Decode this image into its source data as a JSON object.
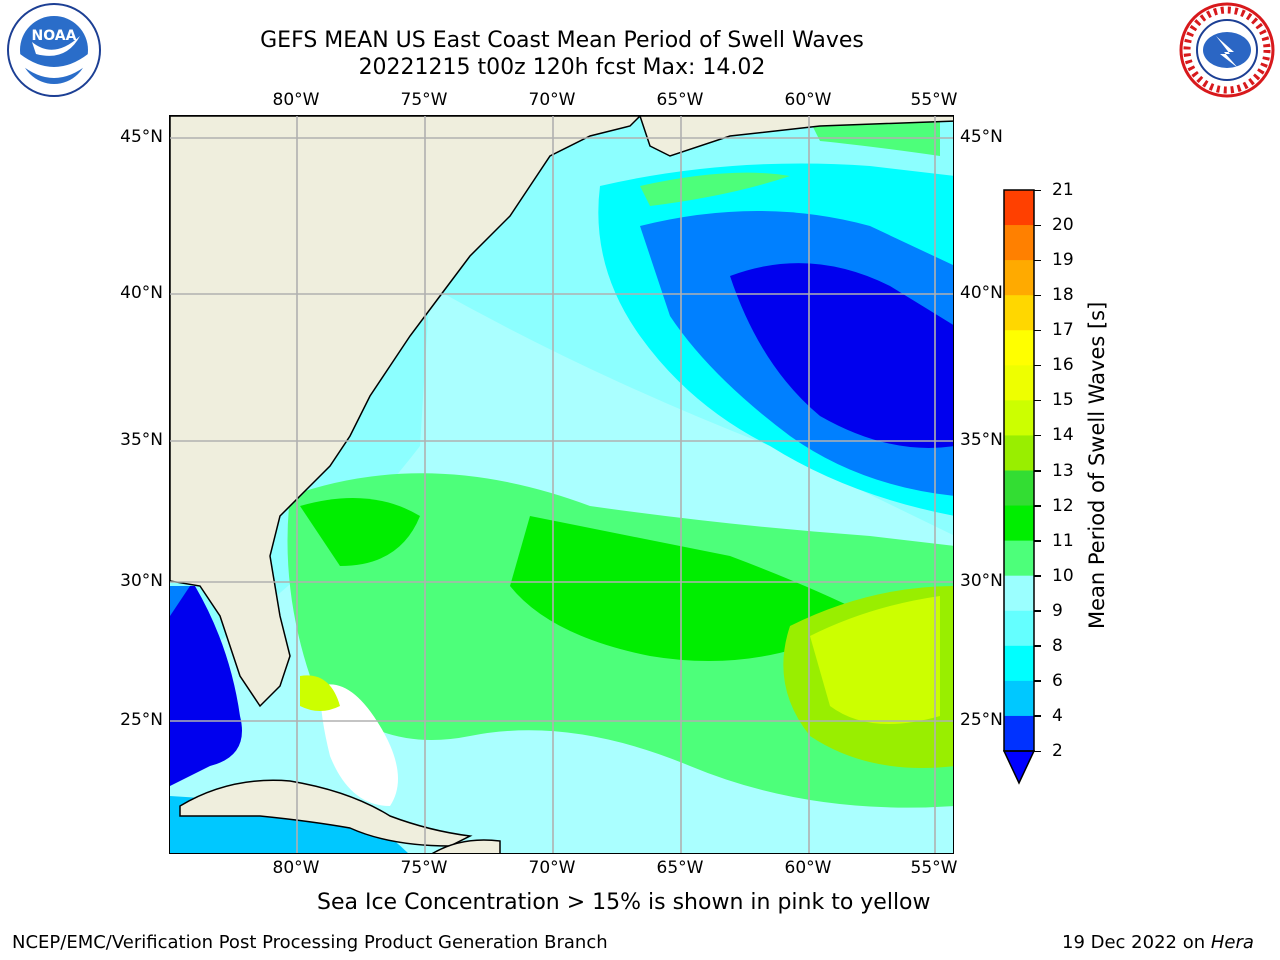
{
  "header": {
    "title_line1": "GEFS MEAN US East Coast Mean Period of Swell Waves",
    "title_line2": "20221215 t00z 120h fcst   Max: 14.02"
  },
  "logos": {
    "left": {
      "name": "noaa-logo",
      "text": "NOAA"
    },
    "right": {
      "name": "national-weather-service-logo",
      "text": "NATIONAL WEATHER SERVICE"
    }
  },
  "map": {
    "lon_ticks": [
      "80°W",
      "75°W",
      "70°W",
      "65°W",
      "60°W",
      "55°W"
    ],
    "lat_ticks": [
      "45°N",
      "40°N",
      "35°N",
      "30°N",
      "25°N"
    ],
    "land_color": "#efeedd",
    "grid_color": "#b0b0b0"
  },
  "colorbar": {
    "label": "Mean Period of Swell Waves [s]",
    "ticks": [
      "2",
      "4",
      "6",
      "8",
      "9",
      "10",
      "11",
      "12",
      "13",
      "14",
      "15",
      "16",
      "17",
      "18",
      "19",
      "20",
      "21"
    ],
    "colors": [
      "#0032ff",
      "#00c8ff",
      "#00ffff",
      "#64ffff",
      "#9bffff",
      "#4dff7a",
      "#00ee00",
      "#33dd33",
      "#99ee00",
      "#ccff00",
      "#eeff00",
      "#ffff00",
      "#ffd700",
      "#ffaa00",
      "#ff8000",
      "#ff4000",
      "#ff0000"
    ],
    "extend_color": "#0000ff"
  },
  "footer": {
    "note": "Sea Ice Concentration > 15% is shown in pink to yellow",
    "left": "NCEP/EMC/Verification Post Processing Product Generation Branch",
    "right_prefix": "19 Dec 2022 on ",
    "right_host": "Hera"
  }
}
